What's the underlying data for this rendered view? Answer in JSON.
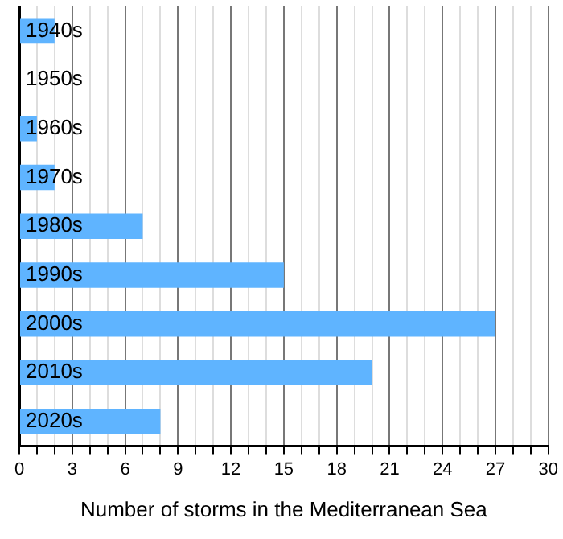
{
  "chart_data": {
    "type": "bar",
    "orientation": "horizontal",
    "xlabel": "Number of storms in the Mediterranean Sea",
    "categories": [
      "1940s",
      "1950s",
      "1960s",
      "1970s",
      "1980s",
      "1990s",
      "2000s",
      "2010s",
      "2020s"
    ],
    "values": [
      2,
      0,
      1,
      2,
      7,
      15,
      27,
      20,
      8
    ],
    "color": "#5fb4ff",
    "xlim": [
      0,
      30
    ],
    "xticks": [
      0,
      {
        "value": 1,
        "label": null
      },
      {
        "value": 2,
        "label": null
      },
      3,
      {
        "value": 4,
        "label": null
      },
      {
        "value": 5,
        "label": null
      },
      6,
      {
        "value": 7,
        "label": null
      },
      {
        "value": 8,
        "label": null
      },
      9,
      {
        "value": 10,
        "label": null
      },
      {
        "value": 11,
        "label": null
      },
      12,
      {
        "value": 13,
        "label": null
      },
      {
        "value": 14,
        "label": null
      },
      15,
      {
        "value": 16,
        "label": null
      },
      {
        "value": 17,
        "label": null
      },
      18,
      {
        "value": 19,
        "label": null
      },
      {
        "value": 20,
        "label": null
      },
      21,
      {
        "value": 22,
        "label": null
      },
      {
        "value": 23,
        "label": null
      },
      24,
      {
        "value": 25,
        "label": null
      },
      {
        "value": 26,
        "label": null
      },
      27,
      {
        "value": 28,
        "label": null
      },
      {
        "value": 29,
        "label": null
      },
      30
    ],
    "grid": "x",
    "legend": false
  }
}
